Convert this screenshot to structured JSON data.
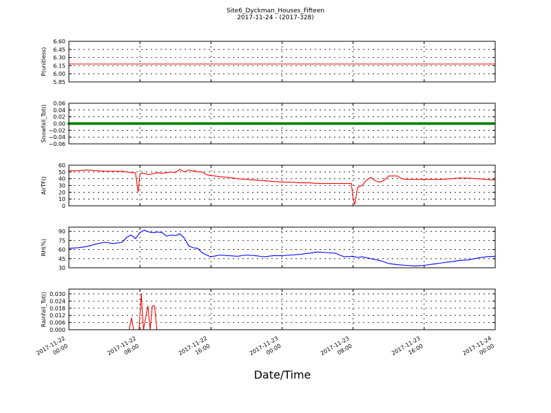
{
  "figure": {
    "title_line1": "Site6_Dyckman_Houses_Fifteen",
    "title_line2": "2017-11-24 - (2017-328)",
    "xlabel": "Date/Time"
  },
  "chart_data": [
    {
      "type": "line",
      "ylabel": "P(unitless)",
      "ylim": [
        5.85,
        6.6
      ],
      "yticks": [
        "5.85",
        "6.00",
        "6.15",
        "6.30",
        "6.45",
        "6.60"
      ],
      "grid": true,
      "series": [
        {
          "color": "#ff0000",
          "x": [
            0,
            48
          ],
          "values": [
            6.18,
            6.18
          ]
        }
      ]
    },
    {
      "type": "line",
      "ylabel": "Snowfall_Tot()",
      "ylim": [
        -0.06,
        0.06
      ],
      "yticks": [
        "−0.06",
        "−0.04",
        "−0.02",
        "0.00",
        "0.02",
        "0.04",
        "0.06"
      ],
      "grid": true,
      "series": [
        {
          "color": "#008000",
          "x": [
            0,
            48
          ],
          "values": [
            0,
            0
          ],
          "markers": true
        }
      ]
    },
    {
      "type": "line",
      "ylabel": "AirTF()",
      "ylim": [
        0,
        60
      ],
      "yticks": [
        "0",
        "10",
        "20",
        "30",
        "40",
        "50",
        "60"
      ],
      "grid": true,
      "series": [
        {
          "color": "#ff0000",
          "x": [
            0,
            1,
            2,
            3,
            4,
            5,
            6,
            7,
            7.5,
            7.8,
            8,
            8.2,
            8.5,
            9,
            10,
            10.5,
            11,
            11.5,
            12,
            12.5,
            13,
            13.5,
            14,
            14.2,
            14.5,
            15,
            15.5,
            16,
            17,
            18,
            19,
            20,
            21,
            22,
            23,
            24,
            25,
            26,
            27,
            28,
            29,
            31.8,
            32.0,
            32.2,
            32.5,
            33,
            33.5,
            34,
            34.5,
            35,
            35.5,
            36,
            36.5,
            37,
            37.5,
            38,
            39,
            40,
            41,
            42,
            43,
            44,
            45,
            46,
            47,
            48
          ],
          "values": [
            52,
            52,
            53,
            52,
            51,
            51,
            51,
            49,
            49,
            20,
            47,
            48,
            48,
            46,
            49,
            48,
            49,
            50,
            49,
            54,
            50,
            53,
            51,
            52,
            50,
            50,
            46,
            45,
            43,
            42,
            40,
            39,
            38,
            37,
            36,
            35,
            35,
            34,
            34,
            33,
            33,
            33,
            10,
            2,
            27,
            30,
            38,
            42,
            37,
            35,
            38,
            44,
            44,
            44,
            40,
            39,
            39,
            39,
            39,
            39,
            40,
            41,
            41,
            40,
            39,
            38
          ]
        }
      ]
    },
    {
      "type": "line",
      "ylabel": "RH(%)",
      "ylim": [
        30,
        97
      ],
      "yticks": [
        "30",
        "45",
        "60",
        "75",
        "90"
      ],
      "grid": true,
      "series": [
        {
          "color": "#0000ff",
          "x": [
            0,
            1,
            2,
            3,
            4,
            5,
            6,
            6.5,
            7,
            7.5,
            8,
            8.5,
            9,
            9.5,
            10,
            10.5,
            11,
            11.5,
            12,
            12.5,
            13,
            13.5,
            14,
            14.5,
            15,
            15.5,
            16,
            17,
            18,
            19,
            20,
            21,
            22,
            23,
            24,
            25,
            26,
            27,
            28,
            29,
            30,
            31,
            32,
            32.5,
            33,
            34,
            35,
            36,
            37,
            38,
            39,
            40,
            41,
            42,
            43,
            44,
            45,
            46,
            47,
            48
          ],
          "values": [
            62,
            63,
            65,
            69,
            72,
            70,
            72,
            80,
            84,
            78,
            88,
            92,
            89,
            88,
            89,
            88,
            82,
            84,
            83,
            86,
            79,
            66,
            63,
            62,
            55,
            51,
            48,
            51,
            50,
            49,
            51,
            50,
            48,
            50,
            50,
            51,
            52,
            54,
            56,
            55,
            54,
            48,
            49,
            47,
            48,
            45,
            42,
            37,
            35,
            34,
            33,
            34,
            36,
            38,
            40,
            42,
            43,
            46,
            48,
            49
          ]
        }
      ]
    },
    {
      "type": "line",
      "ylabel": "Rainfall_Tot()",
      "ylim": [
        0,
        0.034
      ],
      "yticks": [
        "0.000",
        "0.006",
        "0.012",
        "0.018",
        "0.024",
        "0.030"
      ],
      "grid": true,
      "series": [
        {
          "color": "#ff0000",
          "x": [
            0,
            6.8,
            7.05,
            7.3,
            7.9,
            8.15,
            8.4,
            8.65,
            8.9,
            9.15,
            9.4,
            9.65,
            9.9,
            10.15,
            48
          ],
          "values": [
            0,
            0,
            0.01,
            0,
            0,
            0.03,
            0,
            0.01,
            0.02,
            0,
            0.02,
            0.02,
            0,
            0,
            0
          ]
        }
      ]
    }
  ],
  "x_axis": {
    "ticks": [
      {
        "x": 0,
        "line1": "2017-11-22",
        "line2": "00:00"
      },
      {
        "x": 8,
        "line1": "2017-11-22",
        "line2": "08:00"
      },
      {
        "x": 16,
        "line1": "2017-11-22",
        "line2": "16:00"
      },
      {
        "x": 24,
        "line1": "2017-11-23",
        "line2": "00:00"
      },
      {
        "x": 32,
        "line1": "2017-11-23",
        "line2": "08:00"
      },
      {
        "x": 40,
        "line1": "2017-11-23",
        "line2": "16:00"
      },
      {
        "x": 48,
        "line1": "2017-11-24",
        "line2": "00:00"
      }
    ]
  }
}
